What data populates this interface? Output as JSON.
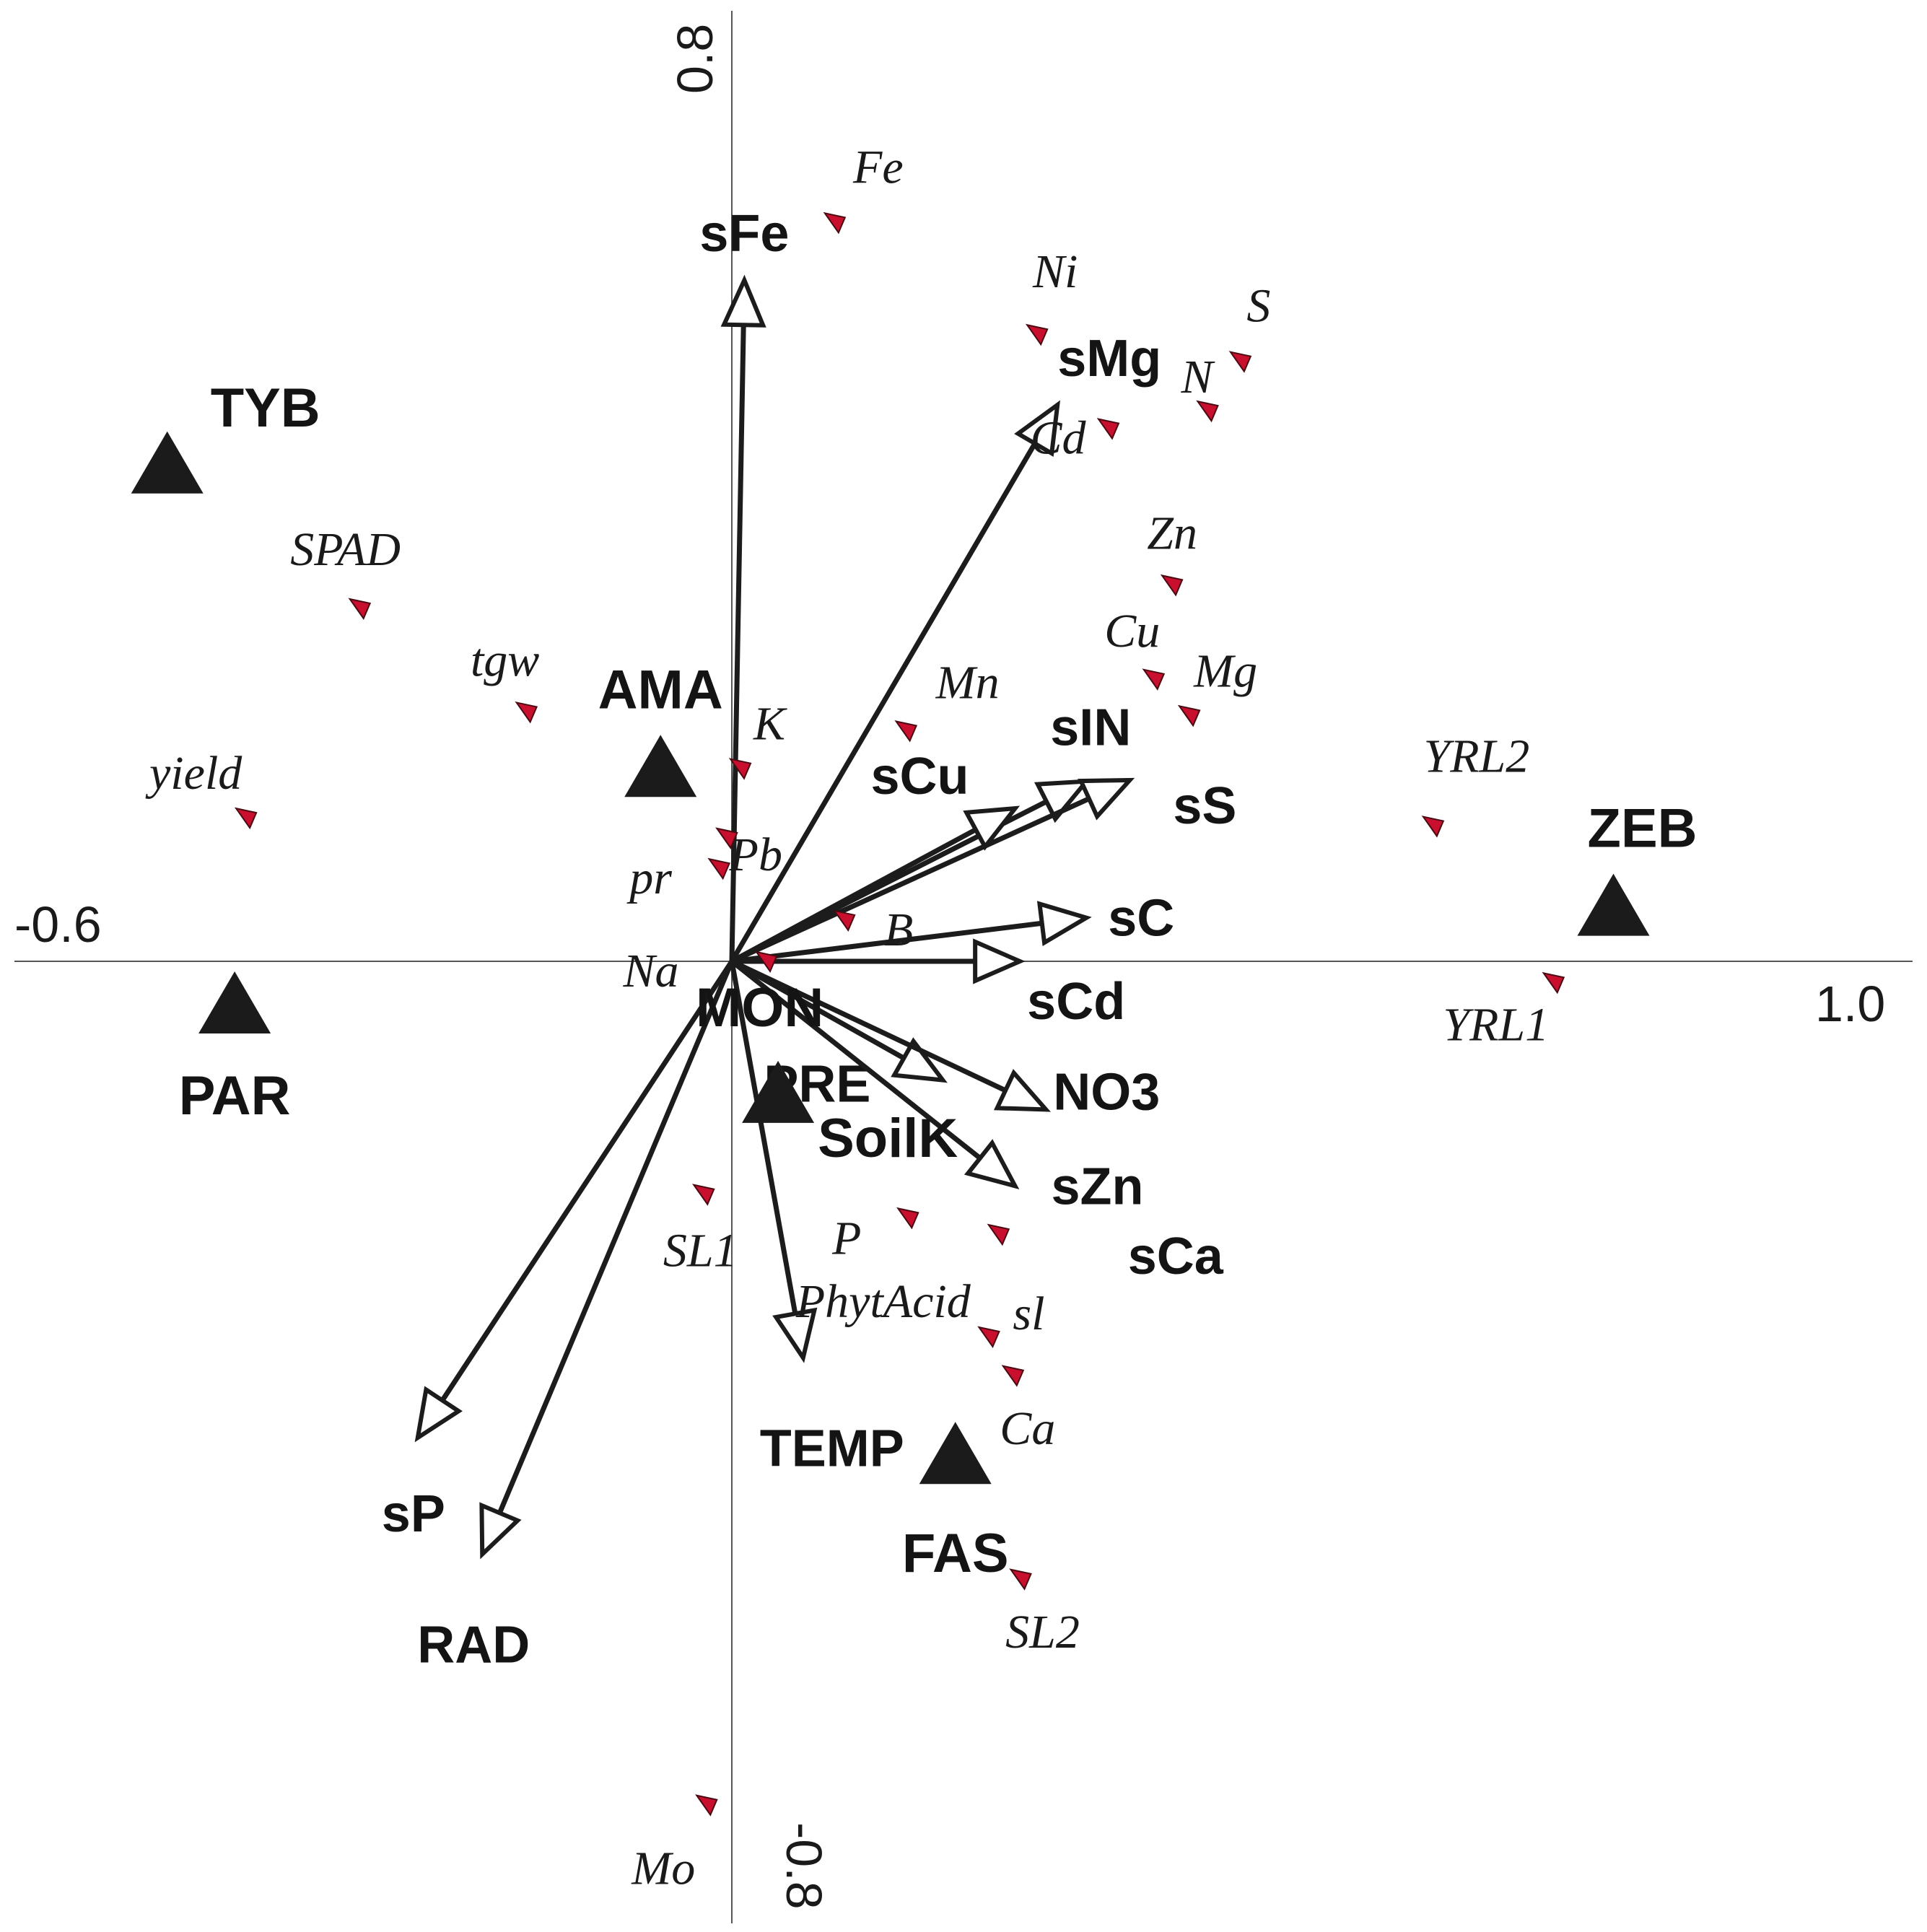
{
  "chart_data": {
    "type": "scatter",
    "title": "",
    "xlabel": "",
    "ylabel": "",
    "xlim": [
      -0.6,
      1.0
    ],
    "ylim": [
      -0.8,
      0.8
    ],
    "axis_ticks": {
      "x_min": "-0.6",
      "x_max": "1.0",
      "y_max": "0.8",
      "y_min": "-0.8"
    },
    "grid": false,
    "legend": "none",
    "colors": {
      "trait_marker": "#c8102e",
      "site_marker": "#1b1b1b",
      "arrow": "#1c1c1c"
    },
    "env_vectors": [
      {
        "label": "sFe",
        "x": 0.013,
        "y": 0.579
      },
      {
        "label": "sMg",
        "x": 0.338,
        "y": 0.473
      },
      {
        "label": "sIN",
        "x": 0.368,
        "y": 0.153
      },
      {
        "label": "sCu",
        "x": 0.294,
        "y": 0.13
      },
      {
        "label": "sS",
        "x": 0.413,
        "y": 0.154
      },
      {
        "label": "sC",
        "x": 0.368,
        "y": 0.037
      },
      {
        "label": "sCd",
        "x": 0.299,
        "y": 0.0
      },
      {
        "label": "PRE",
        "x": 0.219,
        "y": -0.101
      },
      {
        "label": "NO3",
        "x": 0.326,
        "y": -0.126
      },
      {
        "label": "sZn",
        "x": 0.294,
        "y": -0.191
      },
      {
        "label": "TEMP",
        "x": 0.074,
        "y": -0.337
      },
      {
        "label": "sP",
        "x": -0.326,
        "y": -0.405
      },
      {
        "label": "RAD",
        "x": -0.259,
        "y": -0.504
      }
    ],
    "sites": [
      {
        "label": "TYB",
        "x": -0.586,
        "y": 0.421
      },
      {
        "label": "AMA",
        "x": -0.074,
        "y": 0.163
      },
      {
        "label": "ZEB",
        "x": 0.915,
        "y": 0.045
      },
      {
        "label": "PAR",
        "x": -0.516,
        "y": -0.038
      },
      {
        "label": "SoilK",
        "x": 0.048,
        "y": -0.114
      },
      {
        "label": "MON",
        "x": -0.0,
        "y": 0
      },
      {
        "label": "FAS",
        "x": 0.232,
        "y": -0.421
      }
    ],
    "traits": [
      {
        "label": "Fe",
        "x": 0.107,
        "y": 0.628
      },
      {
        "label": "Ni",
        "x": 0.317,
        "y": 0.533
      },
      {
        "label": "S",
        "x": 0.528,
        "y": 0.51
      },
      {
        "label": "N",
        "x": 0.494,
        "y": 0.468
      },
      {
        "label": "Cd",
        "x": 0.391,
        "y": 0.453
      },
      {
        "label": "Zn",
        "x": 0.457,
        "y": 0.32
      },
      {
        "label": "Cu",
        "x": 0.438,
        "y": 0.24
      },
      {
        "label": "Mg",
        "x": 0.475,
        "y": 0.209
      },
      {
        "label": "Mn",
        "x": 0.181,
        "y": 0.196
      },
      {
        "label": "SPAD",
        "x": -0.386,
        "y": 0.3
      },
      {
        "label": "tgw",
        "x": -0.213,
        "y": 0.212
      },
      {
        "label": "yield",
        "x": -0.504,
        "y": 0.122
      },
      {
        "label": "K",
        "x": 0.009,
        "y": 0.164
      },
      {
        "label": "Pb",
        "x": -0.005,
        "y": 0.105
      },
      {
        "label": "pr",
        "x": -0.013,
        "y": 0.079
      },
      {
        "label": "B",
        "x": 0.117,
        "y": 0.035
      },
      {
        "label": "Na",
        "x": 0.036,
        "y": 0.0
      },
      {
        "label": "YRL2",
        "x": 0.728,
        "y": 0.115
      },
      {
        "label": "YRL1",
        "x": 0.853,
        "y": -0.018
      },
      {
        "label": "P",
        "x": 0.183,
        "y": -0.218
      },
      {
        "label": "PhytAcid",
        "x": 0.277,
        "y": -0.232
      },
      {
        "label": "sCa",
        "x": 0.277,
        "y": -0.232
      },
      {
        "label": "sl",
        "x": 0.267,
        "y": -0.319
      },
      {
        "label": "Ca",
        "x": 0.292,
        "y": -0.352
      },
      {
        "label": "SL1",
        "x": -0.029,
        "y": -0.198
      },
      {
        "label": "SL2",
        "x": 0.3,
        "y": -0.525
      },
      {
        "label": "Mo",
        "x": -0.026,
        "y": -0.717
      }
    ]
  }
}
